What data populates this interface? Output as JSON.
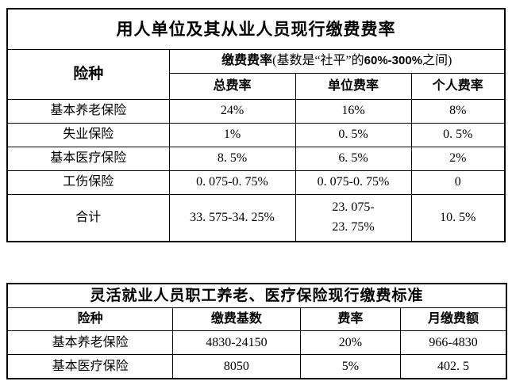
{
  "table1": {
    "title": "用人单位及其从业人员现行缴费费率",
    "header": {
      "insurance_type": "险种",
      "rate_group_prefix": "缴费费率",
      "rate_group_bracket_pre": "(基数是“社平”的",
      "rate_group_range": "60%-300%",
      "rate_group_bracket_post": "之间)",
      "sub_cols": [
        "总费率",
        "单位费率",
        "个人费率"
      ]
    },
    "rows": [
      {
        "label": "基本养老保险",
        "total": "24%",
        "employer": "16%",
        "personal": "8%"
      },
      {
        "label": "失业保险",
        "total": "1%",
        "employer": "0. 5%",
        "personal": "0. 5%"
      },
      {
        "label": "基本医疗保险",
        "total": "8. 5%",
        "employer": "6. 5%",
        "personal": "2%"
      },
      {
        "label": "工伤保险",
        "total": "0. 075-0. 75%",
        "employer": "0. 075-0. 75%",
        "personal": "0"
      },
      {
        "label": "合计",
        "total": "33. 575-34. 25%",
        "employer": "23. 075-\n23. 75%",
        "personal": "10. 5%"
      }
    ]
  },
  "table2": {
    "title": "灵活就业人员职工养老、医疗保险现行缴费标准",
    "headers": [
      "险种",
      "缴费基数",
      "费率",
      "月缴费额"
    ],
    "rows": [
      {
        "label": "基本养老保险",
        "base": "4830-24150",
        "rate": "20%",
        "monthly": "966-4830"
      },
      {
        "label": "基本医疗保险",
        "base": "8050",
        "rate": "5%",
        "monthly": "402. 5"
      }
    ]
  }
}
